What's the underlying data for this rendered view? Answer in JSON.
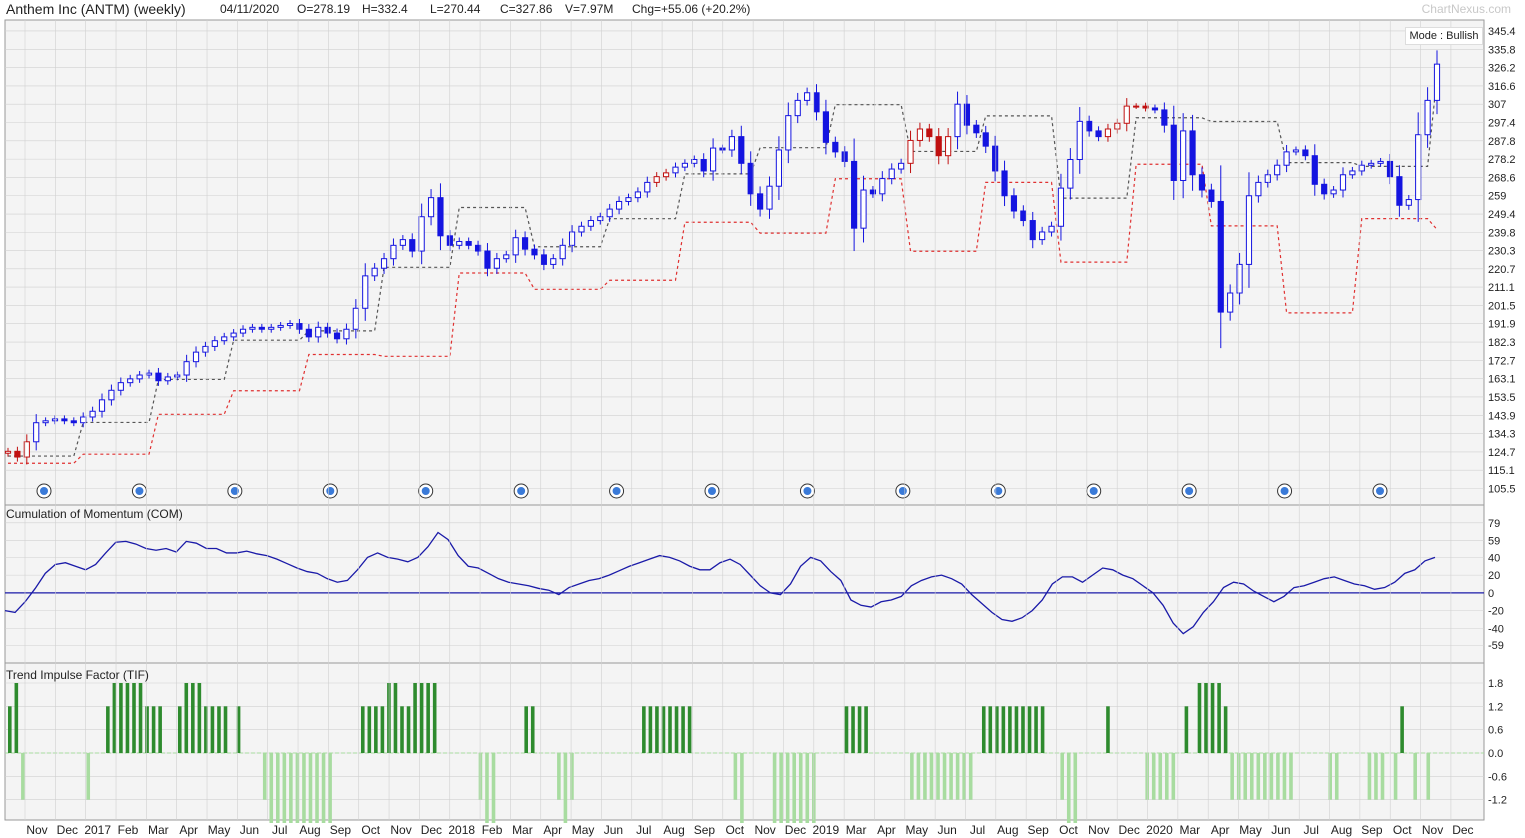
{
  "header": {
    "title": "Anthem Inc (ANTM) (weekly)",
    "date": "04/11/2020",
    "open": "O=278.19",
    "high": "H=332.4",
    "low": "L=270.44",
    "close": "C=327.86",
    "volume": "V=7.97M",
    "change": "Chg=+55.06 (+20.2%)",
    "brand": "ChartNexus.com"
  },
  "mode_label": "Mode : Bullish",
  "colors": {
    "up": "#1414e0",
    "down": "#c01010",
    "line": "#1a1aa8",
    "tif_pos": "#2e8b2e",
    "tif_neg": "#a8dca0",
    "grid": "#d0d0d0",
    "bg": "#f4f4f4"
  },
  "chart_data": [
    {
      "type": "candlestick",
      "title": "Anthem Inc (ANTM) (weekly)",
      "y_ticks": [
        345.4,
        335.8,
        326.2,
        316.6,
        307,
        297.4,
        287.8,
        278.2,
        268.6,
        259,
        249.4,
        239.8,
        230.3,
        220.7,
        211.1,
        201.5,
        191.9,
        182.3,
        172.7,
        163.1,
        153.5,
        143.9,
        134.3,
        124.7,
        115.1,
        105.5
      ],
      "x_labels": [
        "Nov",
        "Dec",
        "2017",
        "Feb",
        "Mar",
        "Apr",
        "May",
        "Jun",
        "Jul",
        "Aug",
        "Sep",
        "Oct",
        "Nov",
        "Dec",
        "2018",
        "Feb",
        "Mar",
        "Apr",
        "May",
        "Jun",
        "Jul",
        "Aug",
        "Sep",
        "Oct",
        "Nov",
        "Dec",
        "2019",
        "Mar",
        "Apr",
        "May",
        "Jun",
        "Jul",
        "Aug",
        "Sep",
        "Oct",
        "Nov",
        "Dec",
        "2020",
        "Mar",
        "Apr",
        "May",
        "Jun",
        "Jul",
        "Aug",
        "Sep",
        "Oct",
        "Nov",
        "Dec"
      ],
      "close_path": [
        125,
        122,
        130,
        140,
        141,
        142,
        141,
        140,
        143,
        146,
        152,
        157,
        161,
        163,
        165,
        166,
        162,
        164,
        165,
        172,
        177,
        180,
        183,
        185,
        187,
        189,
        190,
        189,
        190,
        191,
        192,
        189,
        185,
        190,
        187,
        184,
        189,
        200,
        217,
        221,
        226,
        233,
        236,
        230,
        248,
        258,
        238,
        233,
        235,
        233,
        230,
        221,
        226,
        228,
        237,
        231,
        228,
        223,
        226,
        233,
        240,
        243,
        246,
        248,
        252,
        256,
        258,
        261,
        266,
        269,
        271,
        274,
        276,
        278,
        272,
        284,
        283,
        290,
        276,
        260,
        252,
        264,
        283,
        301,
        309,
        313,
        303,
        287,
        282,
        277,
        242,
        262,
        260,
        268,
        273,
        276,
        288,
        294,
        290,
        280,
        290,
        307,
        296,
        292,
        285,
        272,
        259,
        251,
        246,
        236,
        240,
        243,
        263,
        278,
        298,
        293,
        290,
        294,
        297,
        306,
        306,
        305,
        304,
        296,
        267,
        293,
        270,
        262,
        256,
        198,
        208,
        223,
        259,
        266,
        270,
        275,
        282,
        283,
        280,
        265,
        260,
        262,
        270,
        272,
        275,
        276,
        277,
        269,
        254,
        257,
        291,
        309,
        328
      ],
      "overlay_black_dotted": "trailing stop (bullish)",
      "overlay_red_dotted": "trailing stop (bearish)",
      "alert_markers": 15
    },
    {
      "type": "line",
      "title": "Cumulation of Momentum (COM)",
      "y_ticks": [
        79,
        59,
        40,
        20,
        0,
        -20,
        -40,
        -59
      ],
      "zero_line": 0,
      "values": [
        -20,
        -22,
        -10,
        5,
        22,
        32,
        34,
        30,
        26,
        32,
        45,
        57,
        58,
        55,
        50,
        48,
        50,
        46,
        58,
        56,
        50,
        50,
        45,
        45,
        47,
        44,
        42,
        38,
        33,
        28,
        24,
        22,
        16,
        12,
        14,
        26,
        40,
        45,
        40,
        38,
        35,
        40,
        52,
        68,
        60,
        42,
        30,
        28,
        22,
        16,
        12,
        10,
        8,
        5,
        3,
        -2,
        6,
        10,
        14,
        16,
        20,
        25,
        30,
        34,
        38,
        42,
        40,
        36,
        30,
        26,
        26,
        34,
        38,
        32,
        20,
        8,
        0,
        -2,
        10,
        30,
        40,
        36,
        24,
        14,
        -8,
        -14,
        -16,
        -10,
        -8,
        -4,
        8,
        14,
        18,
        20,
        16,
        10,
        -2,
        -12,
        -22,
        -30,
        -32,
        -28,
        -20,
        -8,
        10,
        18,
        18,
        12,
        20,
        28,
        26,
        20,
        16,
        8,
        0,
        -14,
        -34,
        -46,
        -38,
        -22,
        -10,
        6,
        12,
        10,
        2,
        -4,
        -10,
        -4,
        6,
        8,
        12,
        16,
        18,
        14,
        10,
        8,
        4,
        6,
        12,
        22,
        26,
        36,
        40
      ],
      "ylim": [
        -70,
        90
      ]
    },
    {
      "type": "bar",
      "title": "Trend Impulse Factor (TIF)",
      "y_ticks": [
        1.8,
        1.2,
        0.6,
        0.0,
        -0.6,
        -1.2
      ],
      "values": [
        1.2,
        1.8,
        -1.2,
        0,
        0,
        0,
        0,
        0,
        0,
        0,
        0,
        0,
        -1.2,
        0,
        0,
        1.2,
        1.8,
        1.8,
        1.8,
        1.8,
        1.8,
        1.2,
        1.2,
        1.2,
        0,
        0,
        1.2,
        1.8,
        1.8,
        1.8,
        1.2,
        1.2,
        1.2,
        1.2,
        0,
        1.2,
        0,
        0,
        0,
        -1.2,
        -1.8,
        -1.8,
        -1.8,
        -1.8,
        -1.8,
        -1.8,
        -1.8,
        -1.8,
        -1.8,
        -1.8,
        0,
        0,
        0,
        0,
        1.2,
        1.2,
        1.2,
        1.2,
        1.8,
        1.8,
        1.2,
        1.2,
        1.8,
        1.8,
        1.8,
        1.8,
        0,
        0,
        0,
        0,
        0,
        0,
        -1.2,
        -1.8,
        -1.8,
        0,
        0,
        0,
        0,
        1.2,
        1.2,
        0,
        0,
        0,
        -1.2,
        -1.8,
        -1.2,
        0,
        0,
        0,
        0,
        0,
        0,
        0,
        0,
        0,
        0,
        1.2,
        1.2,
        1.2,
        1.2,
        1.2,
        1.2,
        1.2,
        1.2,
        0,
        0,
        0,
        0,
        0,
        0,
        -1.2,
        -1.8,
        0,
        0,
        0,
        0,
        -1.8,
        -1.8,
        -1.8,
        -1.8,
        -1.8,
        -1.8,
        -1.8,
        0,
        0,
        0,
        0,
        1.2,
        1.2,
        1.2,
        1.2,
        0,
        0,
        0,
        0,
        0,
        0,
        -1.2,
        -1.2,
        -1.2,
        -1.2,
        -1.2,
        -1.2,
        -1.2,
        -1.2,
        -1.2,
        -1.2,
        0,
        1.2,
        1.2,
        1.2,
        1.2,
        1.2,
        1.2,
        1.2,
        1.2,
        1.2,
        1.2,
        0,
        0,
        -1.2,
        -1.8,
        -1.8,
        0,
        0,
        0,
        0,
        1.2,
        0,
        0,
        0,
        0,
        0,
        -1.2,
        -1.2,
        -1.2,
        -1.2,
        -1.2,
        0,
        1.2,
        0,
        1.8,
        1.8,
        1.8,
        1.8,
        1.2,
        -1.2,
        -1.2,
        -1.2,
        -1.2,
        -1.2,
        -1.2,
        -1.2,
        -1.2,
        -1.2,
        -1.2,
        0,
        0,
        0,
        0,
        0,
        -1.2,
        -1.2,
        0,
        0,
        0,
        0,
        -1.2,
        -1.2,
        -1.2,
        0,
        -1.2,
        1.2,
        0,
        -1.2,
        0,
        -1.2
      ]
    }
  ]
}
